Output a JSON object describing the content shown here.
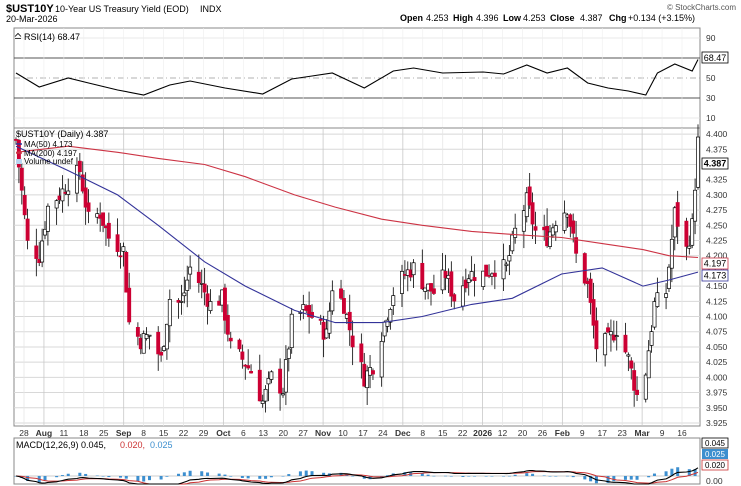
{
  "header": {
    "symbol": "$UST10Y",
    "name": "10-Year US Treasury Yield (EOD)",
    "exchange": "INDX",
    "date": "20-Mar-2026",
    "brand": "© StockCharts.com",
    "open_label": "Open",
    "open": "4.253",
    "high_label": "High",
    "high": "4.396",
    "low_label": "Low",
    "low": "4.253",
    "close_label": "Close",
    "close": "4.387",
    "chg_label": "Chg",
    "chg": "+0.134 (+3.15%)"
  },
  "colors": {
    "up": "#000000",
    "down": "#cc0033",
    "ma50": "#333399",
    "ma200": "#cc3344",
    "rsi": "#000000",
    "macd": "#000000",
    "signal": "#cc3333",
    "histogram": "#3d8fcf",
    "volume_bg": "#b9d5f0"
  },
  "rsi_panel": {
    "legend": "RSI(14) 68.47",
    "last_label": "68.47",
    "ticks": [
      "90",
      "70",
      "50",
      "30",
      "10"
    ]
  },
  "price_panel": {
    "legend_symbol": "$UST10Y (Daily) 4.387",
    "legend_ma50": "MA(50) 4.173",
    "legend_ma200": "MA(200) 4.197",
    "legend_volume": "Volume undef",
    "last_close_label": "4.387",
    "ma200_label": "4.197",
    "ma50_label": "4.173",
    "ticks": [
      "4.400",
      "4.375",
      "4.350",
      "4.325",
      "4.300",
      "4.275",
      "4.250",
      "4.225",
      "4.200",
      "4.175",
      "4.150",
      "4.125",
      "4.100",
      "4.075",
      "4.050",
      "4.025",
      "4.000",
      "3.975",
      "3.950",
      "3.925"
    ],
    "x_labels": [
      {
        "text": "28",
        "bold": false
      },
      {
        "text": "Aug",
        "bold": true
      },
      {
        "text": "11",
        "bold": false
      },
      {
        "text": "18",
        "bold": false
      },
      {
        "text": "25",
        "bold": false
      },
      {
        "text": "Sep",
        "bold": true
      },
      {
        "text": "8",
        "bold": false
      },
      {
        "text": "15",
        "bold": false
      },
      {
        "text": "22",
        "bold": false
      },
      {
        "text": "29",
        "bold": false
      },
      {
        "text": "Oct",
        "bold": true
      },
      {
        "text": "6",
        "bold": false
      },
      {
        "text": "13",
        "bold": false
      },
      {
        "text": "20",
        "bold": false
      },
      {
        "text": "27",
        "bold": false
      },
      {
        "text": "Nov",
        "bold": true
      },
      {
        "text": "10",
        "bold": false
      },
      {
        "text": "17",
        "bold": false
      },
      {
        "text": "24",
        "bold": false
      },
      {
        "text": "Dec",
        "bold": true
      },
      {
        "text": "8",
        "bold": false
      },
      {
        "text": "15",
        "bold": false
      },
      {
        "text": "22",
        "bold": false
      },
      {
        "text": "2026",
        "bold": true
      },
      {
        "text": "12",
        "bold": false
      },
      {
        "text": "20",
        "bold": false
      },
      {
        "text": "26",
        "bold": false
      },
      {
        "text": "Feb",
        "bold": true
      },
      {
        "text": "9",
        "bold": false
      },
      {
        "text": "17",
        "bold": false
      },
      {
        "text": "23",
        "bold": false
      },
      {
        "text": "Mar",
        "bold": true
      },
      {
        "text": "9",
        "bold": false
      },
      {
        "text": "16",
        "bold": false
      }
    ]
  },
  "macd_panel": {
    "legend_macd": "MACD(12,26,9) 0.045,",
    "legend_signal": "0.020,",
    "legend_hist": "0.025",
    "label_macd": "0.045",
    "label_hist": "0.025",
    "label_signal": "0.020",
    "label_zero": "0.00"
  },
  "chart_data": {
    "type": "candlestick",
    "title": "$UST10Y 10-Year US Treasury Yield (EOD)",
    "ylim": [
      3.92,
      4.41
    ],
    "x_start": "2025-07-28",
    "x_end": "2026-03-20",
    "close_path": [
      [
        "2025-07-28",
        4.39
      ],
      [
        "2025-08-01",
        4.22
      ],
      [
        "2025-08-05",
        4.2
      ],
      [
        "2025-08-08",
        4.28
      ],
      [
        "2025-08-12",
        4.3
      ],
      [
        "2025-08-15",
        4.32
      ],
      [
        "2025-08-19",
        4.34
      ],
      [
        "2025-08-22",
        4.26
      ],
      [
        "2025-08-26",
        4.27
      ],
      [
        "2025-08-29",
        4.23
      ],
      [
        "2025-09-03",
        4.21
      ],
      [
        "2025-09-05",
        4.09
      ],
      [
        "2025-09-09",
        4.06
      ],
      [
        "2025-09-12",
        4.07
      ],
      [
        "2025-09-16",
        4.03
      ],
      [
        "2025-09-19",
        4.13
      ],
      [
        "2025-09-23",
        4.12
      ],
      [
        "2025-09-26",
        4.18
      ],
      [
        "2025-09-30",
        4.15
      ],
      [
        "2025-10-03",
        4.12
      ],
      [
        "2025-10-07",
        4.13
      ],
      [
        "2025-10-10",
        4.05
      ],
      [
        "2025-10-14",
        4.03
      ],
      [
        "2025-10-17",
        4.01
      ],
      [
        "2025-10-21",
        3.96
      ],
      [
        "2025-10-24",
        4.0
      ],
      [
        "2025-10-28",
        3.98
      ],
      [
        "2025-10-31",
        4.09
      ],
      [
        "2025-11-04",
        4.11
      ],
      [
        "2025-11-07",
        4.1
      ],
      [
        "2025-11-12",
        4.07
      ],
      [
        "2025-11-14",
        4.15
      ],
      [
        "2025-11-18",
        4.12
      ],
      [
        "2025-11-21",
        4.06
      ],
      [
        "2025-11-25",
        4.0
      ],
      [
        "2025-11-28",
        4.02
      ],
      [
        "2025-12-02",
        4.09
      ],
      [
        "2025-12-05",
        4.14
      ],
      [
        "2025-12-09",
        4.17
      ],
      [
        "2025-12-12",
        4.18
      ],
      [
        "2025-12-16",
        4.15
      ],
      [
        "2025-12-19",
        4.14
      ],
      [
        "2025-12-23",
        4.17
      ],
      [
        "2025-12-26",
        4.13
      ],
      [
        "2025-12-31",
        4.17
      ],
      [
        "2026-01-05",
        4.17
      ],
      [
        "2026-01-09",
        4.18
      ],
      [
        "2026-01-13",
        4.18
      ],
      [
        "2026-01-16",
        4.24
      ],
      [
        "2026-01-20",
        4.29
      ],
      [
        "2026-01-23",
        4.24
      ],
      [
        "2026-01-27",
        4.23
      ],
      [
        "2026-01-30",
        4.26
      ],
      [
        "2026-02-03",
        4.28
      ],
      [
        "2026-02-06",
        4.2
      ],
      [
        "2026-02-10",
        4.15
      ],
      [
        "2026-02-13",
        4.05
      ],
      [
        "2026-02-17",
        4.06
      ],
      [
        "2026-02-20",
        4.08
      ],
      [
        "2026-02-24",
        4.03
      ],
      [
        "2026-02-27",
        3.97
      ],
      [
        "2026-03-02",
        4.01
      ],
      [
        "2026-03-05",
        4.12
      ],
      [
        "2026-03-09",
        4.14
      ],
      [
        "2026-03-12",
        4.27
      ],
      [
        "2026-03-16",
        4.21
      ],
      [
        "2026-03-18",
        4.25
      ],
      [
        "2026-03-20",
        4.387
      ]
    ],
    "ma50": [
      [
        "2025-07-28",
        4.38
      ],
      [
        "2025-08-15",
        4.34
      ],
      [
        "2025-09-01",
        4.3
      ],
      [
        "2025-09-15",
        4.25
      ],
      [
        "2025-10-01",
        4.19
      ],
      [
        "2025-10-15",
        4.15
      ],
      [
        "2025-11-01",
        4.11
      ],
      [
        "2025-11-15",
        4.09
      ],
      [
        "2025-12-01",
        4.09
      ],
      [
        "2025-12-15",
        4.1
      ],
      [
        "2026-01-01",
        4.12
      ],
      [
        "2026-01-15",
        4.13
      ],
      [
        "2026-02-01",
        4.17
      ],
      [
        "2026-02-15",
        4.18
      ],
      [
        "2026-03-01",
        4.15
      ],
      [
        "2026-03-10",
        4.16
      ],
      [
        "2026-03-20",
        4.173
      ]
    ],
    "ma200": [
      [
        "2025-07-28",
        4.37
      ],
      [
        "2025-08-15",
        4.38
      ],
      [
        "2025-09-01",
        4.37
      ],
      [
        "2025-09-15",
        4.36
      ],
      [
        "2025-10-01",
        4.35
      ],
      [
        "2025-10-15",
        4.33
      ],
      [
        "2025-11-01",
        4.3
      ],
      [
        "2025-11-15",
        4.28
      ],
      [
        "2025-12-01",
        4.26
      ],
      [
        "2025-12-15",
        4.25
      ],
      [
        "2026-01-01",
        4.24
      ],
      [
        "2026-01-15",
        4.235
      ],
      [
        "2026-02-01",
        4.23
      ],
      [
        "2026-02-15",
        4.22
      ],
      [
        "2026-03-01",
        4.21
      ],
      [
        "2026-03-10",
        4.2
      ],
      [
        "2026-03-20",
        4.197
      ]
    ],
    "rsi": {
      "ylim": [
        0,
        100
      ],
      "overbought": 70,
      "oversold": 30,
      "midline": 50,
      "values": [
        [
          "2025-07-28",
          55
        ],
        [
          "2025-08-05",
          41
        ],
        [
          "2025-08-15",
          50
        ],
        [
          "2025-08-22",
          45
        ],
        [
          "2025-09-01",
          38
        ],
        [
          "2025-09-10",
          33
        ],
        [
          "2025-09-19",
          43
        ],
        [
          "2025-09-26",
          47
        ],
        [
          "2025-10-08",
          40
        ],
        [
          "2025-10-21",
          34
        ],
        [
          "2025-10-31",
          49
        ],
        [
          "2025-11-07",
          52
        ],
        [
          "2025-11-14",
          55
        ],
        [
          "2025-11-25",
          40
        ],
        [
          "2025-12-05",
          57
        ],
        [
          "2025-12-12",
          60
        ],
        [
          "2025-12-22",
          55
        ],
        [
          "2026-01-05",
          56
        ],
        [
          "2026-01-12",
          54
        ],
        [
          "2026-01-20",
          63
        ],
        [
          "2026-01-27",
          55
        ],
        [
          "2026-02-03",
          60
        ],
        [
          "2026-02-10",
          45
        ],
        [
          "2026-02-17",
          40
        ],
        [
          "2026-02-24",
          37
        ],
        [
          "2026-03-02",
          33
        ],
        [
          "2026-03-06",
          55
        ],
        [
          "2026-03-12",
          64
        ],
        [
          "2026-03-18",
          57
        ],
        [
          "2026-03-20",
          68.47
        ]
      ]
    },
    "macd": {
      "macd": 0.045,
      "signal": 0.02,
      "histogram": 0.025
    }
  }
}
